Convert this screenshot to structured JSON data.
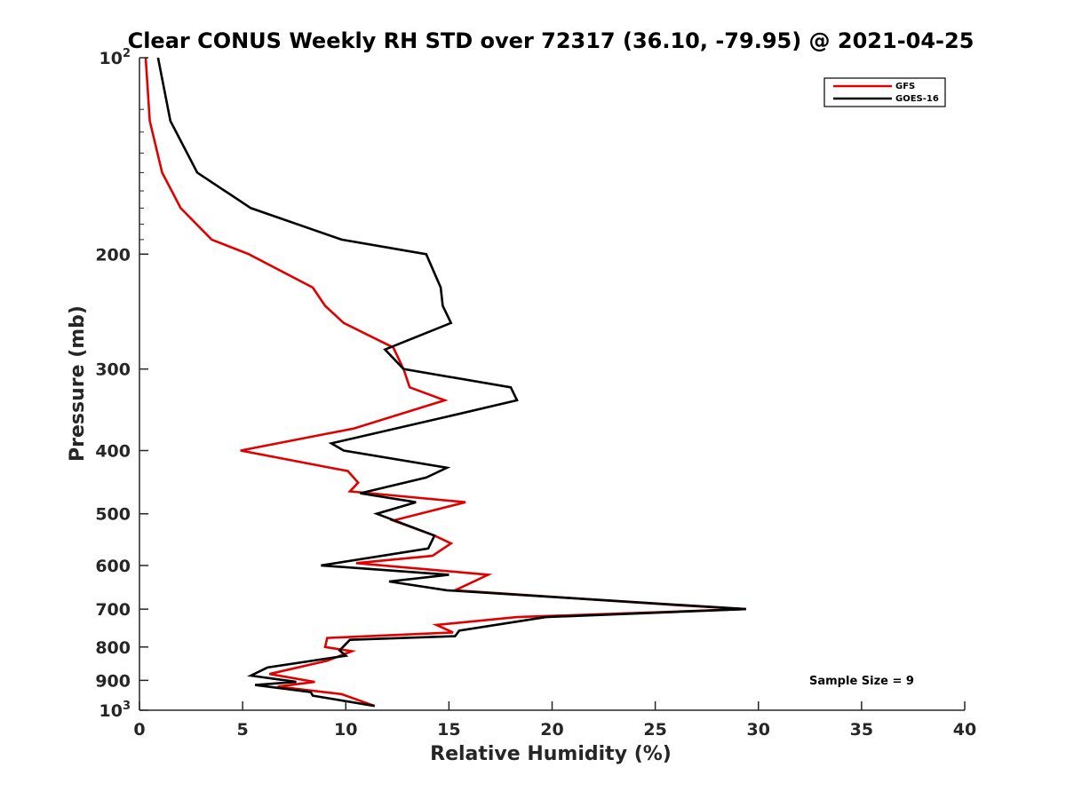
{
  "chart_data": {
    "type": "line",
    "title": "Clear CONUS Weekly RH STD over 72317 (36.10, -79.95) @ 2021-04-25",
    "xlabel": "Relative Humidity (%)",
    "ylabel": "Pressure (mb)",
    "xlim": [
      0,
      40
    ],
    "ylim": [
      100,
      1000
    ],
    "y_scale": "log",
    "y_reversed": true,
    "grid": false,
    "legend_position": "top-right",
    "x_ticks": [
      "0",
      "5",
      "10",
      "15",
      "20",
      "25",
      "30",
      "35",
      "40"
    ],
    "y_ticks": [
      {
        "value": 100,
        "base": "10",
        "sup": "2"
      },
      {
        "value": 200,
        "base": "200",
        "sup": ""
      },
      {
        "value": 300,
        "base": "300",
        "sup": ""
      },
      {
        "value": 400,
        "base": "400",
        "sup": ""
      },
      {
        "value": 500,
        "base": "500",
        "sup": ""
      },
      {
        "value": 600,
        "base": "600",
        "sup": ""
      },
      {
        "value": 700,
        "base": "700",
        "sup": ""
      },
      {
        "value": 800,
        "base": "800",
        "sup": ""
      },
      {
        "value": 900,
        "base": "900",
        "sup": ""
      },
      {
        "value": 1000,
        "base": "10",
        "sup": "3"
      }
    ],
    "annotation": "Sample Size = 9",
    "series": [
      {
        "name": "GFS",
        "color": "#e00000",
        "points": [
          [
            0.3,
            100
          ],
          [
            0.5,
            125
          ],
          [
            1.1,
            150
          ],
          [
            2.0,
            170
          ],
          [
            3.5,
            190
          ],
          [
            5.3,
            200
          ],
          [
            8.4,
            225
          ],
          [
            9.0,
            240
          ],
          [
            9.9,
            255
          ],
          [
            12.3,
            278
          ],
          [
            12.8,
            300
          ],
          [
            13.1,
            320
          ],
          [
            14.8,
            335
          ],
          [
            10.4,
            370
          ],
          [
            4.9,
            400
          ],
          [
            10.1,
            430
          ],
          [
            10.6,
            448
          ],
          [
            10.2,
            462
          ],
          [
            15.8,
            480
          ],
          [
            12.3,
            512
          ],
          [
            14.3,
            540
          ],
          [
            15.1,
            555
          ],
          [
            14.2,
            580
          ],
          [
            10.5,
            595
          ],
          [
            16.9,
            620
          ],
          [
            15.3,
            655
          ],
          [
            26.0,
            690
          ],
          [
            29.4,
            700
          ],
          [
            18.3,
            720
          ],
          [
            14.4,
            740
          ],
          [
            15.2,
            760
          ],
          [
            9.1,
            775
          ],
          [
            9.0,
            800
          ],
          [
            10.3,
            812
          ],
          [
            9.1,
            840
          ],
          [
            6.3,
            880
          ],
          [
            8.5,
            905
          ],
          [
            6.7,
            920
          ],
          [
            9.8,
            945
          ],
          [
            11.4,
            985
          ]
        ]
      },
      {
        "name": "GOES-16",
        "color": "#000000",
        "points": [
          [
            0.9,
            100
          ],
          [
            1.5,
            125
          ],
          [
            2.8,
            150
          ],
          [
            5.4,
            170
          ],
          [
            9.8,
            190
          ],
          [
            13.9,
            200
          ],
          [
            14.6,
            225
          ],
          [
            14.7,
            240
          ],
          [
            15.1,
            255
          ],
          [
            11.9,
            280
          ],
          [
            12.8,
            300
          ],
          [
            18.0,
            320
          ],
          [
            18.3,
            335
          ],
          [
            14.9,
            355
          ],
          [
            9.3,
            390
          ],
          [
            9.9,
            400
          ],
          [
            14.9,
            425
          ],
          [
            13.9,
            440
          ],
          [
            10.7,
            465
          ],
          [
            13.4,
            480
          ],
          [
            11.5,
            500
          ],
          [
            14.3,
            540
          ],
          [
            14.0,
            565
          ],
          [
            8.8,
            600
          ],
          [
            15.0,
            620
          ],
          [
            12.1,
            635
          ],
          [
            14.9,
            655
          ],
          [
            29.4,
            700
          ],
          [
            19.7,
            720
          ],
          [
            15.5,
            755
          ],
          [
            15.3,
            770
          ],
          [
            10.2,
            780
          ],
          [
            9.7,
            810
          ],
          [
            10.0,
            825
          ],
          [
            6.2,
            860
          ],
          [
            5.4,
            885
          ],
          [
            7.6,
            905
          ],
          [
            5.6,
            915
          ],
          [
            8.3,
            938
          ],
          [
            8.4,
            950
          ],
          [
            11.4,
            985
          ]
        ]
      }
    ]
  }
}
